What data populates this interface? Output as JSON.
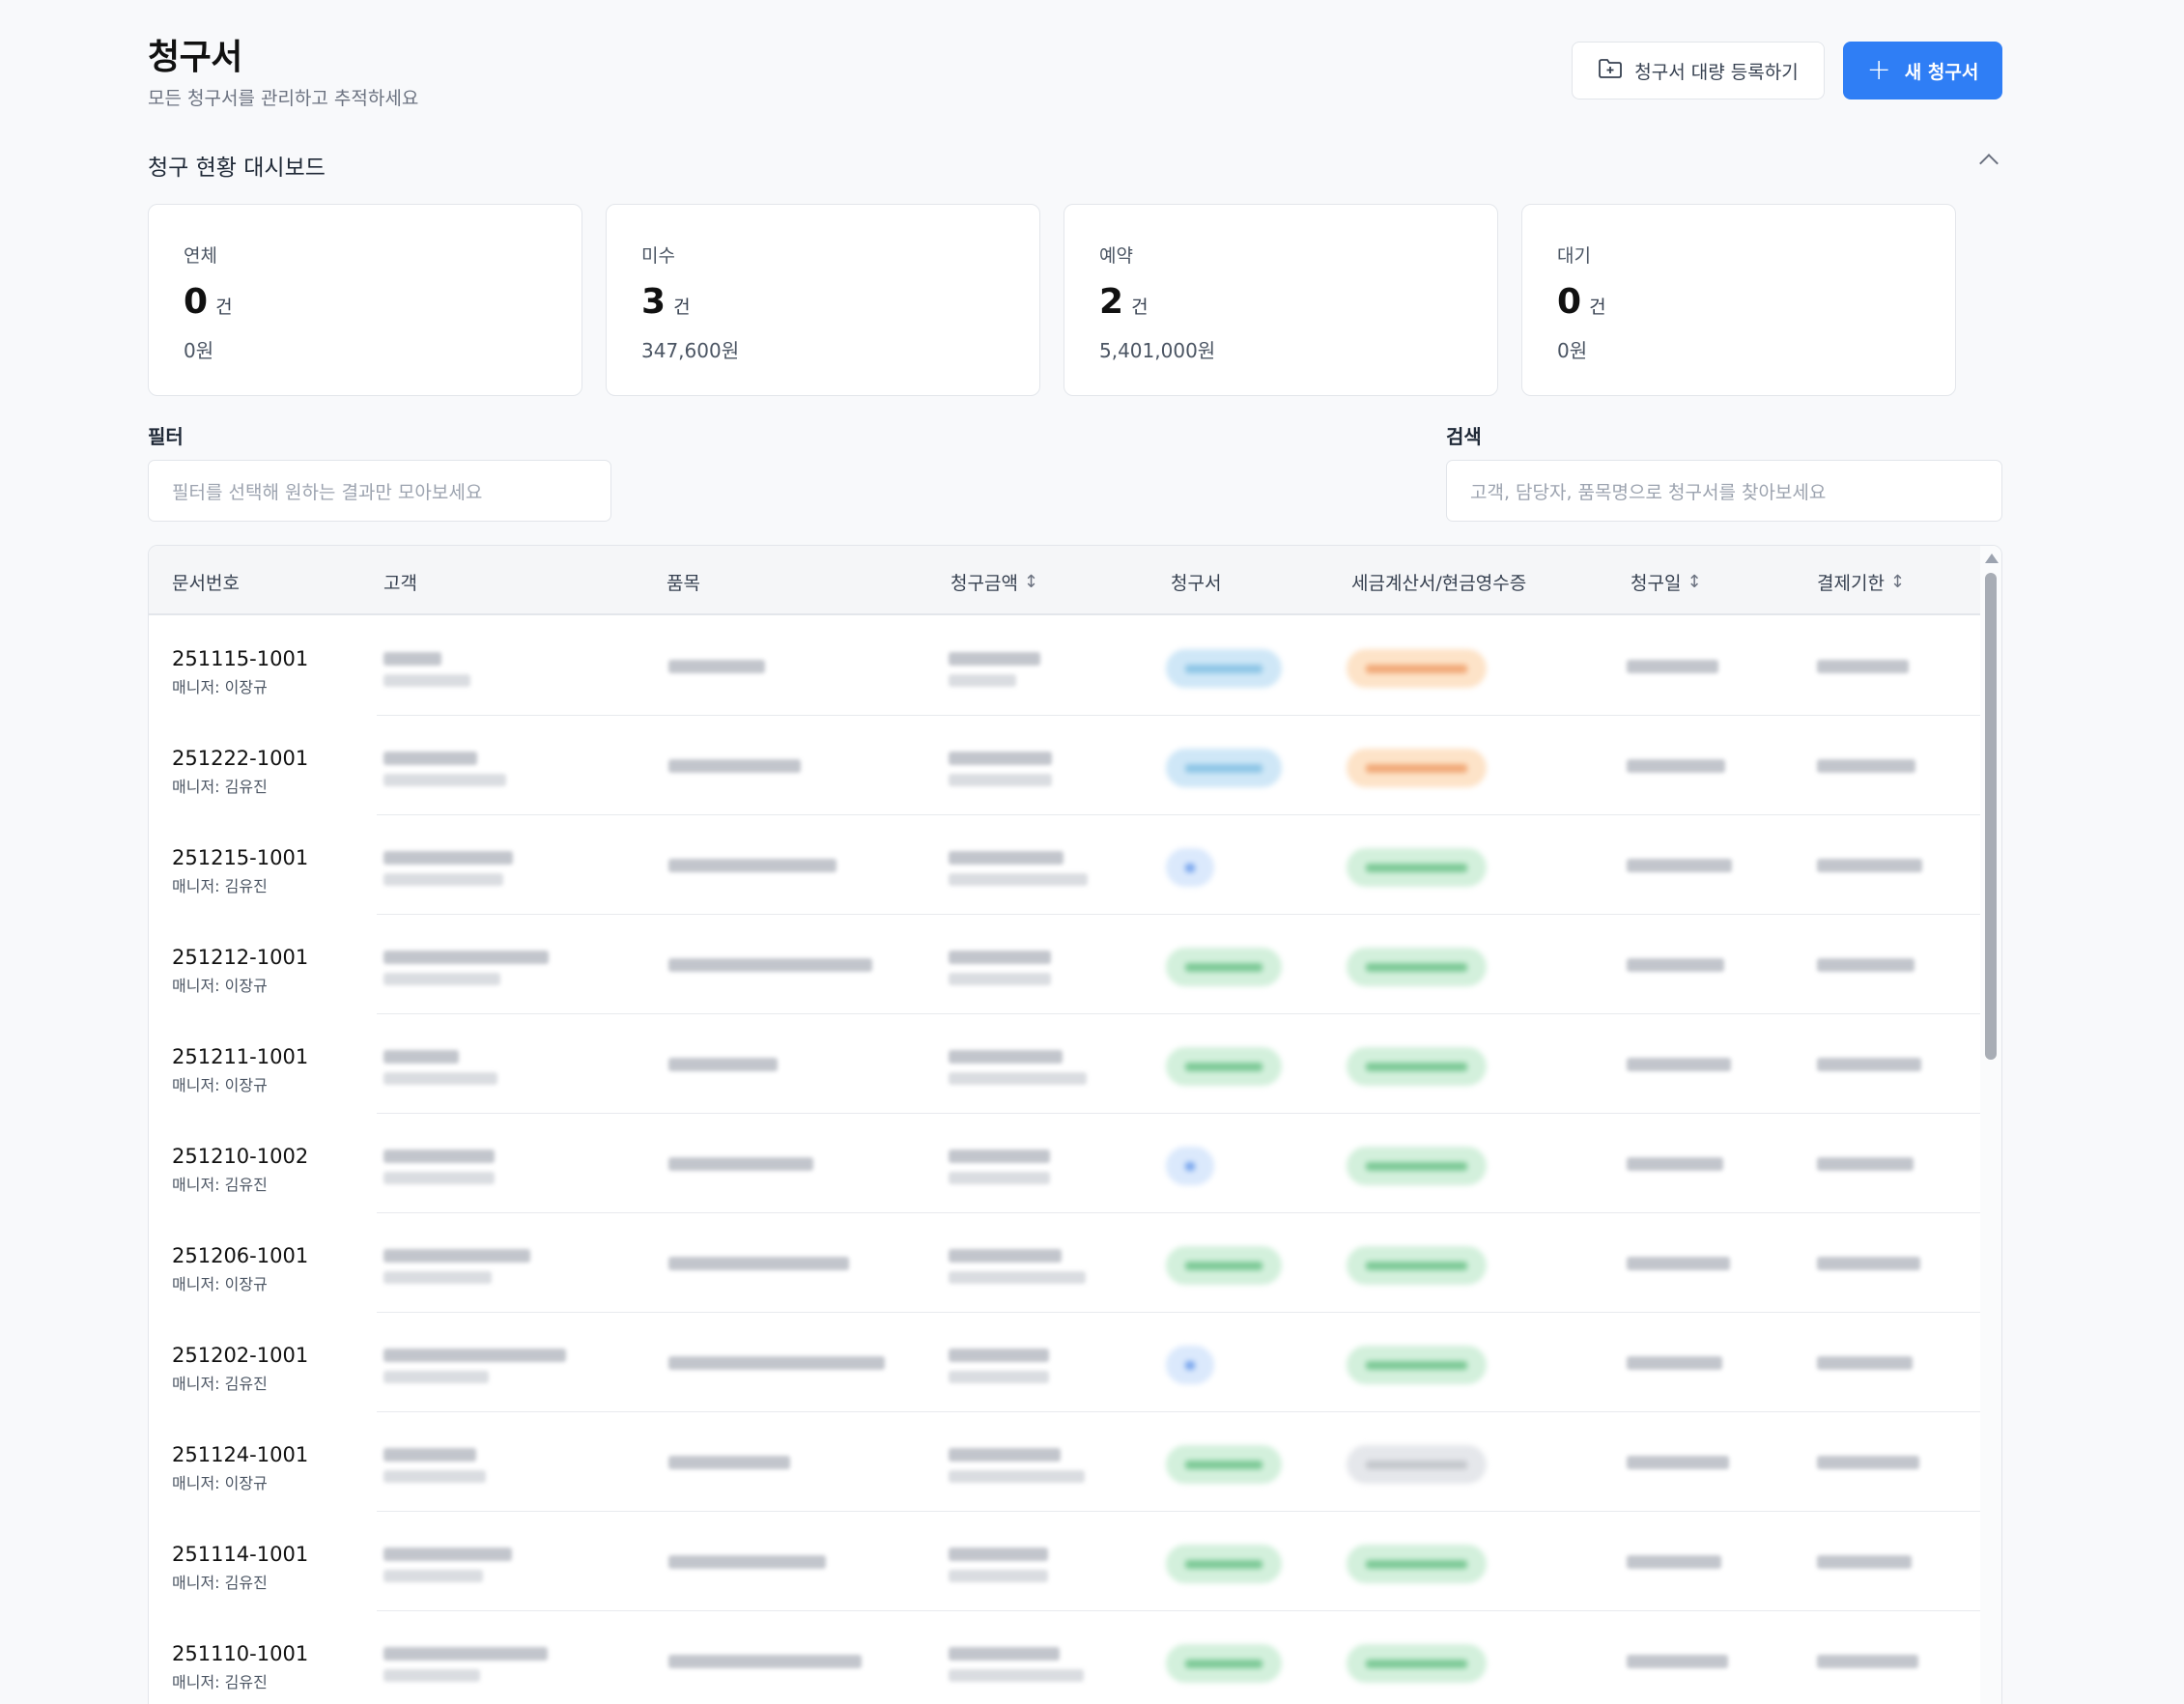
{
  "header": {
    "title": "청구서",
    "subtitle": "모든 청구서를 관리하고 추적하세요",
    "bulk_button": "청구서 대량 등록하기",
    "new_button": "새 청구서"
  },
  "dashboard": {
    "title": "청구 현황 대시보드",
    "cards": [
      {
        "label": "연체",
        "count": "0",
        "unit": "건",
        "amount": "0원"
      },
      {
        "label": "미수",
        "count": "3",
        "unit": "건",
        "amount": "347,600원"
      },
      {
        "label": "예약",
        "count": "2",
        "unit": "건",
        "amount": "5,401,000원"
      },
      {
        "label": "대기",
        "count": "0",
        "unit": "건",
        "amount": "0원"
      }
    ]
  },
  "filter": {
    "label": "필터",
    "placeholder": "필터를 선택해 원하는 결과만 모아보세요"
  },
  "search": {
    "label": "검색",
    "placeholder": "고객, 담당자, 품목명으로 청구서를 찾아보세요"
  },
  "table": {
    "columns": [
      "문서번호",
      "고객",
      "품목",
      "청구금액",
      "청구서",
      "세금계산서/현금영수증",
      "청구일",
      "결제기한"
    ],
    "rows": [
      {
        "doc_no": "251115-1001",
        "manager": "매니저: 이장규",
        "invoice_color": "blue",
        "tax_color": "orange"
      },
      {
        "doc_no": "251222-1001",
        "manager": "매니저: 김유진",
        "invoice_color": "blue",
        "tax_color": "orange"
      },
      {
        "doc_no": "251215-1001",
        "manager": "매니저: 김유진",
        "invoice_color": "lightblue",
        "tax_color": "green"
      },
      {
        "doc_no": "251212-1001",
        "manager": "매니저: 이장규",
        "invoice_color": "green",
        "tax_color": "green"
      },
      {
        "doc_no": "251211-1001",
        "manager": "매니저: 이장규",
        "invoice_color": "green",
        "tax_color": "green"
      },
      {
        "doc_no": "251210-1002",
        "manager": "매니저: 김유진",
        "invoice_color": "lightblue",
        "tax_color": "green"
      },
      {
        "doc_no": "251206-1001",
        "manager": "매니저: 이장규",
        "invoice_color": "green",
        "tax_color": "green"
      },
      {
        "doc_no": "251202-1001",
        "manager": "매니저: 김유진",
        "invoice_color": "lightblue",
        "tax_color": "green"
      },
      {
        "doc_no": "251124-1001",
        "manager": "매니저: 이장규",
        "invoice_color": "green",
        "tax_color": "gray"
      },
      {
        "doc_no": "251114-1001",
        "manager": "매니저: 김유진",
        "invoice_color": "green",
        "tax_color": "green"
      },
      {
        "doc_no": "251110-1001",
        "manager": "매니저: 김유진",
        "invoice_color": "green",
        "tax_color": "green"
      }
    ]
  },
  "colors": {
    "primary": "#2f7ef5",
    "background": "#f8f9fb",
    "pill_blue": "#cfe7f7",
    "pill_orange": "#fde3c8",
    "pill_green": "#d3f0dc",
    "pill_gray": "#e5e7eb"
  },
  "icons": {
    "bulk_button_icon": "folder-plus-icon",
    "new_button_icon": "plus-icon",
    "collapse_icon": "chevron-up-icon",
    "sort_icon": "sort-arrows-icon"
  }
}
